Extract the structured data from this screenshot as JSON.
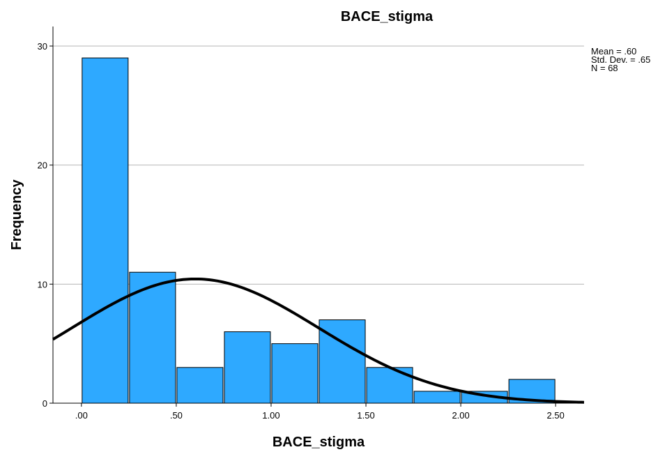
{
  "chart_data": {
    "type": "bar",
    "title": "BACE_stigma",
    "xlabel": "BACE_stigma",
    "ylabel": "Frequency",
    "xlim": [
      -0.15,
      2.65
    ],
    "ylim": [
      0,
      30
    ],
    "grid": true,
    "bin_width": 0.25,
    "bins": [
      {
        "start": 0.0,
        "end": 0.25,
        "count": 29
      },
      {
        "start": 0.25,
        "end": 0.5,
        "count": 11
      },
      {
        "start": 0.5,
        "end": 0.75,
        "count": 3
      },
      {
        "start": 0.75,
        "end": 1.0,
        "count": 6
      },
      {
        "start": 1.0,
        "end": 1.25,
        "count": 5
      },
      {
        "start": 1.25,
        "end": 1.5,
        "count": 7
      },
      {
        "start": 1.5,
        "end": 1.75,
        "count": 3
      },
      {
        "start": 1.75,
        "end": 2.0,
        "count": 1
      },
      {
        "start": 2.0,
        "end": 2.25,
        "count": 1
      },
      {
        "start": 2.25,
        "end": 2.5,
        "count": 2
      }
    ],
    "x_ticks": [
      {
        "value": 0.0,
        "label": ".00"
      },
      {
        "value": 0.5,
        "label": ".50"
      },
      {
        "value": 1.0,
        "label": "1.00"
      },
      {
        "value": 1.5,
        "label": "1.50"
      },
      {
        "value": 2.0,
        "label": "2.00"
      },
      {
        "value": 2.5,
        "label": "2.50"
      }
    ],
    "y_ticks": [
      {
        "value": 0,
        "label": "0"
      },
      {
        "value": 10,
        "label": "10"
      },
      {
        "value": 20,
        "label": "20"
      },
      {
        "value": 30,
        "label": "30"
      }
    ],
    "normal_curve": {
      "mean": 0.6,
      "sd": 0.65,
      "n": 68
    },
    "stats_lines": [
      "Mean = .60",
      "Std. Dev. = .65",
      "N = 68"
    ]
  }
}
